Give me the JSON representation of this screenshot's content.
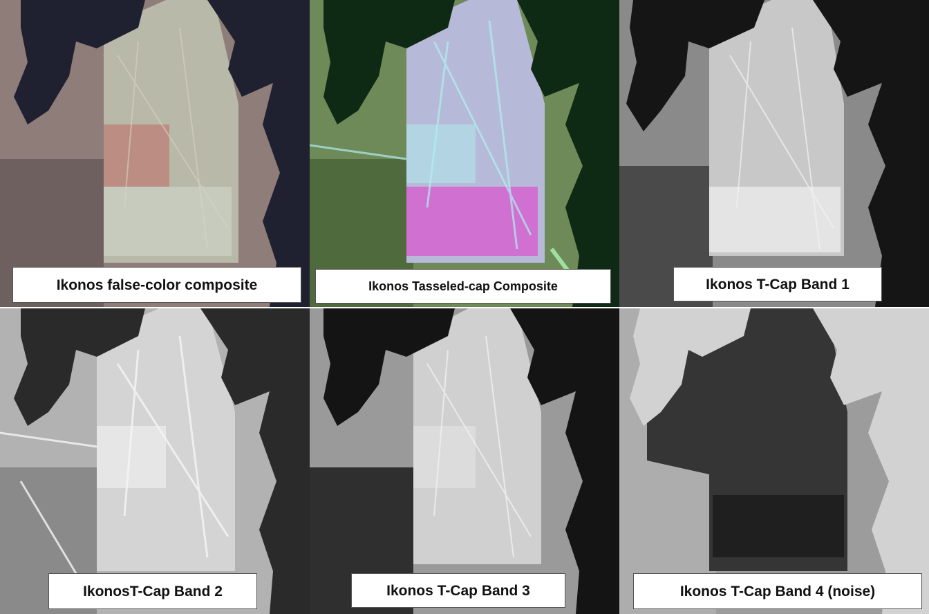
{
  "panels": [
    {
      "id": "p1",
      "label": "Ikonos false-color composite",
      "palette": {
        "bg": "#8f7d79",
        "west": "#6f6060",
        "forest": "#1f2130",
        "field": "#b8b9a8",
        "field2": "#c6cbbd",
        "road": "#d8d2c4",
        "red": "#c24040"
      }
    },
    {
      "id": "p2",
      "label": "Ikonos Tasseled-cap Composite",
      "palette": {
        "bg": "#6e8a58",
        "west": "#4f6a3c",
        "forest": "#0f2a14",
        "field": "#b7b9d8",
        "field2": "#d070d0",
        "road": "#aef0ee",
        "red": "#9fe0a0"
      }
    },
    {
      "id": "p3",
      "label": "Ikonos T-Cap Band 1",
      "palette": {
        "bg": "#8a8a8a",
        "west": "#4a4a4a",
        "forest": "#151515",
        "field": "#c8c8c8",
        "field2": "#e4e4e4",
        "road": "#f2f2f2",
        "red": "#bbbbbb"
      }
    },
    {
      "id": "p4",
      "label": "IkonosT-Cap Band 2",
      "palette": {
        "bg": "#b2b2b2",
        "west": "#8a8a8a",
        "forest": "#2a2a2a",
        "field": "#d4d4d4",
        "field2": "#e6e6e6",
        "road": "#f5f5f5",
        "red": "#cfcfcf"
      }
    },
    {
      "id": "p5",
      "label": "Ikonos T-Cap Band 3",
      "palette": {
        "bg": "#9a9a9a",
        "west": "#2f2f2f",
        "forest": "#141414",
        "field": "#d0d0d0",
        "field2": "#dcdcdc",
        "road": "#f0f0f0",
        "red": "#bdbdbd"
      }
    },
    {
      "id": "p6",
      "label": "Ikonos T-Cap Band 4 (noise)",
      "palette": {
        "bg": "#9c9c9c",
        "west": "#b9b9b9",
        "forest": "#d2d2d2",
        "field": "#353535",
        "field2": "#1f1f1f",
        "road": "#4a4a4a",
        "red": "#8a8a8a"
      }
    }
  ]
}
